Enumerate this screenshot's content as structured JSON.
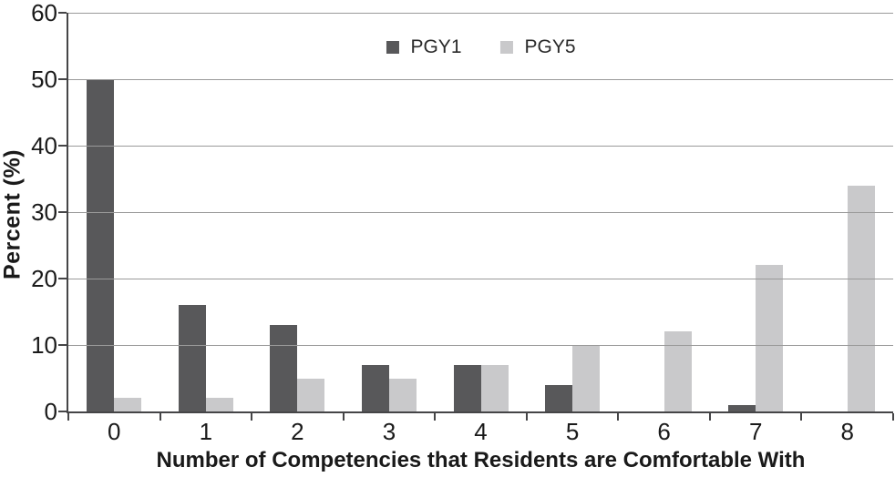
{
  "chart_data": {
    "type": "bar",
    "title": "",
    "xlabel": "Number of Competencies that Residents are Comfortable With",
    "ylabel": "Percent (%)",
    "categories": [
      "0",
      "1",
      "2",
      "3",
      "4",
      "5",
      "6",
      "7",
      "8"
    ],
    "series": [
      {
        "name": "PGY1",
        "color": "#58585a",
        "values": [
          50,
          16,
          13,
          7,
          7,
          4,
          0,
          1,
          0
        ]
      },
      {
        "name": "PGY5",
        "color": "#c9c9cb",
        "values": [
          2,
          2,
          5,
          5,
          7,
          10,
          12,
          22,
          34
        ]
      }
    ],
    "ylim": [
      0,
      60
    ],
    "yticks": [
      0,
      10,
      20,
      30,
      40,
      50,
      60
    ],
    "grid": "horizontal",
    "legend_position": "top-center"
  },
  "colors": {
    "bar_pgy1": "#58585a",
    "bar_pgy5": "#c9c9cb",
    "axis": "#454547",
    "gridline": "#9a9a9a",
    "text": "#1a1a1a",
    "background": "#ffffff"
  }
}
